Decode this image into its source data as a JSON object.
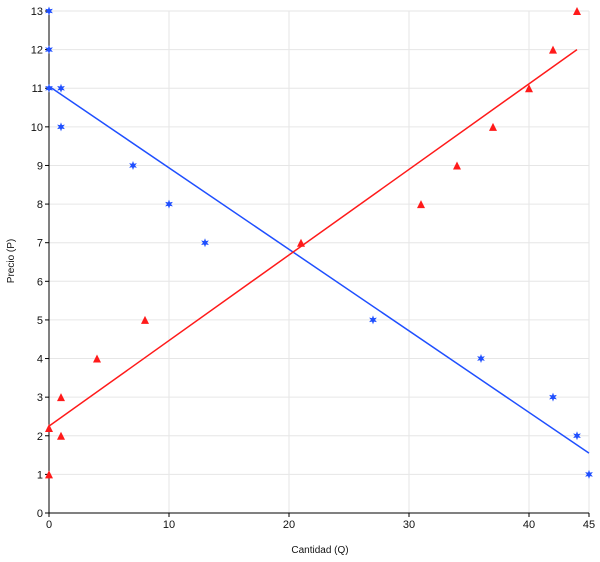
{
  "chart_data": {
    "type": "scatter",
    "title": "",
    "xlabel": "Cantidad (Q)",
    "ylabel": "Precio (P)",
    "xlim": [
      0,
      45
    ],
    "ylim": [
      0,
      13
    ],
    "xticks": [
      0,
      10,
      20,
      30,
      40,
      45
    ],
    "yticks": [
      0,
      1,
      2,
      3,
      4,
      5,
      6,
      7,
      8,
      9,
      10,
      11,
      12,
      13
    ],
    "grid": true,
    "series": [
      {
        "marker": "star",
        "color": "#1f4fff",
        "points": [
          [
            0,
            13
          ],
          [
            0,
            12
          ],
          [
            0,
            11
          ],
          [
            1,
            11
          ],
          [
            1,
            10
          ],
          [
            7,
            9
          ],
          [
            10,
            8
          ],
          [
            13,
            7
          ],
          [
            27,
            5
          ],
          [
            36,
            4
          ],
          [
            42,
            3
          ],
          [
            44,
            2
          ],
          [
            45,
            1
          ]
        ],
        "trendline": [
          [
            0,
            11.05
          ],
          [
            45,
            1.55
          ]
        ]
      },
      {
        "marker": "triangle",
        "color": "#ff1a1a",
        "points": [
          [
            0,
            1
          ],
          [
            0,
            2.2
          ],
          [
            1,
            2
          ],
          [
            1,
            3
          ],
          [
            4,
            4
          ],
          [
            8,
            5
          ],
          [
            21,
            7
          ],
          [
            31,
            8
          ],
          [
            34,
            9
          ],
          [
            37,
            10
          ],
          [
            40,
            11
          ],
          [
            42,
            12
          ],
          [
            44,
            13
          ]
        ],
        "trendline": [
          [
            0,
            2.25
          ],
          [
            44,
            12
          ]
        ]
      }
    ]
  }
}
